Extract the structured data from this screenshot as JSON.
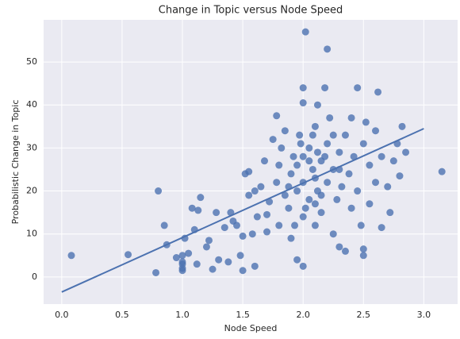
{
  "chart_data": {
    "type": "scatter",
    "title": "Change in Topic versus Node Speed",
    "x_label": "Node Speed",
    "y_label": "Probabilistic Change in Topic",
    "color": "#4c72b0",
    "grid": true,
    "xlim": [
      -0.15,
      3.28
    ],
    "ylim": [
      -6.3,
      59.8
    ],
    "xticks": [
      {
        "value": 0,
        "label": "0.0"
      },
      0.5,
      {
        "value": 1,
        "label": "1.0"
      },
      1.5,
      {
        "value": 2,
        "label": "2.0"
      },
      2.5,
      {
        "value": 3,
        "label": "3.0"
      }
    ],
    "yticks": [
      0,
      10,
      20,
      30,
      40,
      50
    ],
    "x": [
      0.08,
      0.55,
      0.78,
      0.8,
      0.85,
      0.87,
      0.95,
      1.0,
      1.0,
      1.0,
      1.0,
      1.0,
      1.02,
      1.05,
      1.08,
      1.1,
      1.12,
      1.13,
      1.15,
      1.2,
      1.22,
      1.25,
      1.28,
      1.3,
      1.35,
      1.38,
      1.4,
      1.42,
      1.45,
      1.48,
      1.5,
      1.5,
      1.52,
      1.55,
      1.55,
      1.58,
      1.6,
      1.6,
      1.62,
      1.65,
      1.68,
      1.7,
      1.7,
      1.72,
      1.75,
      1.78,
      1.78,
      1.8,
      1.8,
      1.82,
      1.85,
      1.85,
      1.88,
      1.9,
      1.9,
      1.92,
      1.95,
      1.95,
      1.97,
      2.0,
      2.0,
      2.0,
      2.0,
      2.0,
      2.02,
      2.05,
      2.05,
      2.08,
      2.1,
      2.1,
      2.12,
      2.12,
      2.15,
      2.15,
      2.18,
      2.2,
      2.2,
      2.2,
      2.22,
      2.25,
      2.25,
      2.28,
      2.3,
      2.3,
      2.32,
      2.35,
      2.35,
      2.38,
      2.4,
      2.4,
      2.42,
      2.45,
      2.45,
      2.48,
      2.5,
      2.5,
      2.5,
      2.52,
      2.55,
      2.55,
      2.6,
      2.6,
      2.62,
      2.65,
      2.65,
      2.7,
      2.72,
      2.75,
      2.78,
      2.8,
      2.82,
      2.85,
      3.15,
      1.95,
      2.05,
      2.1,
      1.98,
      2.08,
      2.15,
      2.02,
      1.88,
      2.18,
      2.25,
      1.93,
      2.12,
      2.3,
      2.0,
      2.1
    ],
    "y": [
      5,
      5.2,
      1,
      20,
      12,
      7.5,
      4.5,
      1.5,
      2,
      3,
      3.5,
      5,
      9,
      5.5,
      16,
      11,
      3,
      15.5,
      18.5,
      7,
      8.5,
      1.8,
      15,
      4,
      11.5,
      3.5,
      15,
      13,
      12,
      5,
      1.5,
      9.5,
      24,
      19,
      24.5,
      10,
      2.5,
      20,
      14,
      21,
      27,
      10.5,
      14.5,
      17.5,
      32,
      37.5,
      22,
      12,
      26,
      30,
      19,
      34,
      16,
      9,
      24,
      28,
      4,
      20,
      33,
      2.5,
      14,
      22,
      40.5,
      44,
      57,
      18,
      30,
      25,
      12,
      35,
      40,
      20,
      15,
      27,
      44,
      53,
      22,
      31,
      37,
      10,
      25,
      18,
      29,
      7,
      21,
      33,
      6,
      24,
      37,
      16,
      28,
      44,
      20,
      12,
      5,
      6.5,
      31,
      36,
      26,
      17,
      22,
      34,
      43,
      11.5,
      28,
      21,
      15,
      27,
      31,
      23.5,
      35,
      29,
      24.5,
      26,
      27,
      23,
      31,
      33,
      19,
      16,
      21,
      28,
      33,
      12,
      29,
      25,
      28,
      17
    ],
    "fit_line": {
      "x": [
        0,
        3
      ],
      "y": [
        -3.5,
        34.5
      ]
    }
  }
}
